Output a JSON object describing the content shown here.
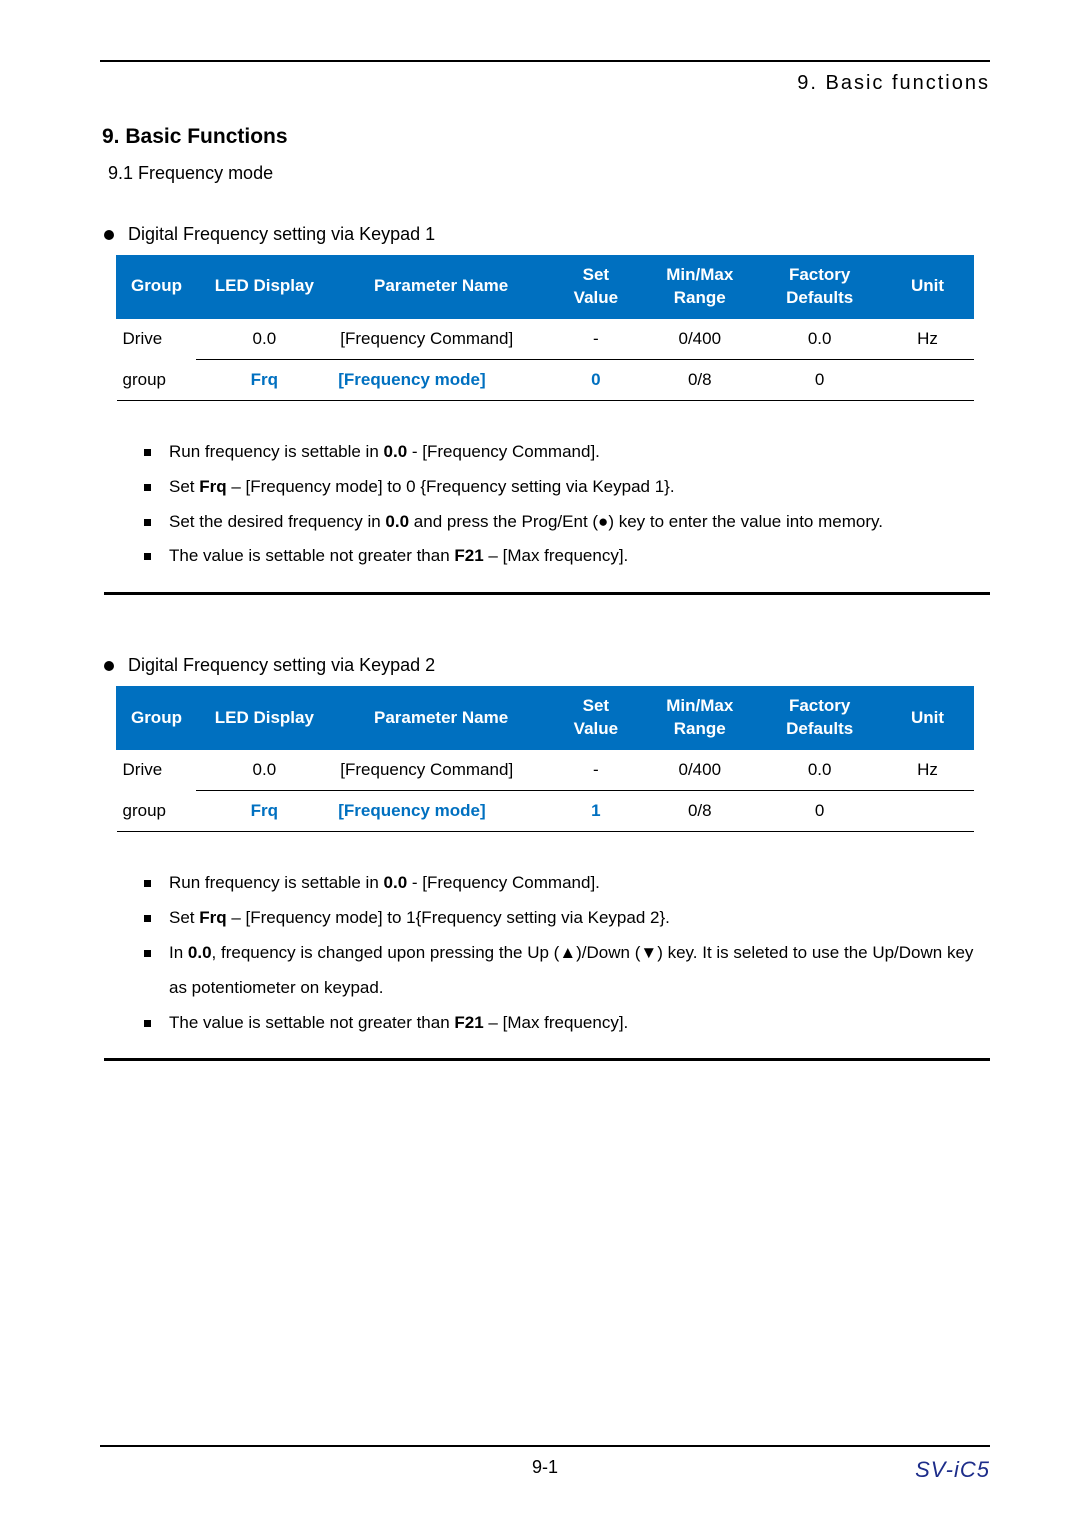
{
  "header": {
    "right": "9. Basic functions"
  },
  "sectionTitle": "9.  Basic Functions",
  "sectionSub": "9.1    Frequency mode",
  "columns": {
    "group": "Group",
    "led": "LED Display",
    "param": "Parameter Name",
    "setv_a": "Set",
    "setv_b": "Value",
    "range_a": "Min/Max",
    "range_b": "Range",
    "factory_a": "Factory",
    "factory_b": "Defaults",
    "unit": "Unit"
  },
  "colors": {
    "header_bg": "#0070c0",
    "header_fg": "#ffffff",
    "highlight_fg": "#0070c0",
    "footer_model": "#1d2d8a"
  },
  "block1": {
    "bullet": "Digital Frequency setting via Keypad 1",
    "rows": [
      {
        "group": "Drive",
        "led": "0.0",
        "param": "[Frequency Command]",
        "setv": "-",
        "range": "0/400",
        "factory": "0.0",
        "unit": "Hz",
        "hl": false
      },
      {
        "group": "group",
        "led": "Frq",
        "param": "[Frequency mode]",
        "setv": "0",
        "range": "0/8",
        "factory": "0",
        "unit": "",
        "hl": true
      }
    ],
    "notes": [
      "Run frequency is settable in <b>0.0</b> - [Frequency Command].",
      "Set <b>Frq</b> – [Frequency mode] to 0 {Frequency setting via Keypad 1}.",
      "Set the desired frequency in <b>0.0</b> and press the Prog/Ent (●) key to enter the value into memory.",
      "The value is settable not greater than <b>F21</b> – [Max frequency]."
    ]
  },
  "block2": {
    "bullet": "Digital Frequency setting via Keypad 2",
    "rows": [
      {
        "group": "Drive",
        "led": "0.0",
        "param": "[Frequency Command]",
        "setv": "-",
        "range": "0/400",
        "factory": "0.0",
        "unit": "Hz",
        "hl": false
      },
      {
        "group": "group",
        "led": "Frq",
        "param": "[Frequency mode]",
        "setv": "1",
        "range": "0/8",
        "factory": "0",
        "unit": "",
        "hl": true
      }
    ],
    "notes": [
      "Run frequency is settable in <b>0.0</b> - [Frequency Command].",
      "Set <b>Frq</b> – [Frequency mode] to 1{Frequency setting via Keypad 2}.",
      "In <b>0.0</b>, frequency is changed upon pressing the Up (▲)/Down (▼) key. It is seleted to use the Up/Down key as potentiometer on keypad.",
      "The value is settable not greater than <b>F21</b> – [Max frequency]."
    ]
  },
  "footer": {
    "page": "9-1",
    "model": "SV-iC5"
  }
}
